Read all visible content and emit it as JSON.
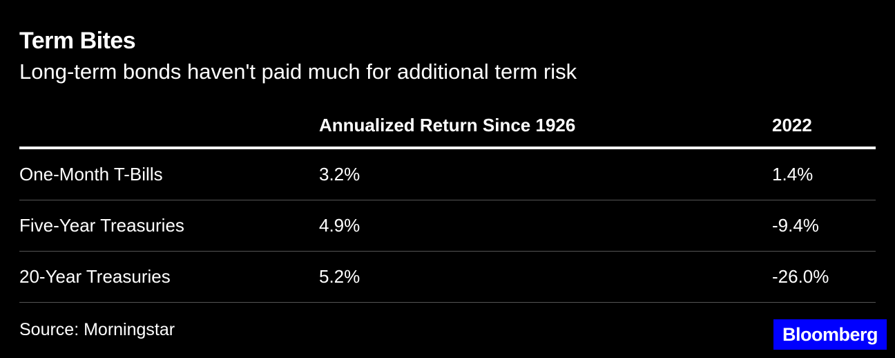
{
  "header": {
    "title": "Term Bites",
    "subtitle": "Long-term bonds haven't paid much for additional term risk"
  },
  "table": {
    "columns": [
      "",
      "Annualized Return Since 1926",
      "2022"
    ],
    "rows": [
      [
        "One-Month T-Bills",
        "3.2%",
        "1.4%"
      ],
      [
        "Five-Year Treasuries",
        "4.9%",
        "-9.4%"
      ],
      [
        "20-Year Treasuries",
        "5.2%",
        "-26.0%"
      ]
    ]
  },
  "footer": {
    "source": "Source: Morningstar",
    "logo": "Bloomberg"
  }
}
